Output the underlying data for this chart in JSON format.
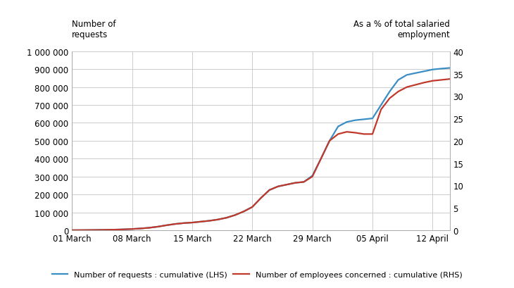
{
  "ylabel_left": "Number of\nrequests",
  "ylabel_right": "As a % of total salaried\nemployment",
  "x_labels": [
    "01 March",
    "08 March",
    "15 March",
    "22 March",
    "29 March",
    "05 April",
    "12 April"
  ],
  "x_positions": [
    0,
    7,
    14,
    21,
    28,
    35,
    42
  ],
  "lhs_data_x": [
    0,
    1,
    2,
    3,
    4,
    5,
    6,
    7,
    8,
    9,
    10,
    11,
    12,
    13,
    14,
    15,
    16,
    17,
    18,
    19,
    20,
    21,
    22,
    23,
    24,
    25,
    26,
    27,
    28,
    29,
    30,
    31,
    32,
    33,
    34,
    35,
    36,
    37,
    38,
    39,
    40,
    41,
    42,
    43,
    44
  ],
  "lhs_data_y": [
    500,
    800,
    1200,
    1800,
    2500,
    3500,
    5000,
    7000,
    10000,
    14000,
    20000,
    28000,
    35000,
    40000,
    43000,
    48000,
    53000,
    60000,
    70000,
    85000,
    105000,
    130000,
    180000,
    225000,
    245000,
    255000,
    265000,
    270000,
    305000,
    400000,
    500000,
    580000,
    605000,
    615000,
    620000,
    625000,
    700000,
    775000,
    840000,
    868000,
    878000,
    888000,
    898000,
    903000,
    907000
  ],
  "rhs_data_x": [
    0,
    1,
    2,
    3,
    4,
    5,
    6,
    7,
    8,
    9,
    10,
    11,
    12,
    13,
    14,
    15,
    16,
    17,
    18,
    19,
    20,
    21,
    22,
    23,
    24,
    25,
    26,
    27,
    28,
    29,
    30,
    31,
    32,
    33,
    34,
    35,
    36,
    37,
    38,
    39,
    40,
    41,
    42,
    43,
    44
  ],
  "rhs_data_y": [
    0.02,
    0.03,
    0.05,
    0.07,
    0.1,
    0.14,
    0.2,
    0.28,
    0.4,
    0.56,
    0.8,
    1.12,
    1.4,
    1.6,
    1.72,
    1.92,
    2.12,
    2.4,
    2.8,
    3.4,
    4.2,
    5.2,
    7.2,
    9.0,
    9.8,
    10.2,
    10.6,
    10.8,
    12.0,
    16.0,
    20.0,
    21.5,
    22.0,
    21.8,
    21.5,
    21.5,
    27.0,
    29.5,
    31.0,
    32.0,
    32.5,
    33.0,
    33.4,
    33.6,
    33.8
  ],
  "lhs_color": "#3a8ec5",
  "rhs_color": "#c0392b",
  "lhs_ylim": [
    0,
    1000000
  ],
  "rhs_ylim": [
    0,
    40
  ],
  "lhs_yticks": [
    0,
    100000,
    200000,
    300000,
    400000,
    500000,
    600000,
    700000,
    800000,
    900000,
    1000000
  ],
  "rhs_yticks": [
    0,
    5,
    10,
    15,
    20,
    25,
    30,
    35,
    40
  ],
  "legend_lhs": "Number of requests : cumulative (LHS)",
  "legend_rhs": "Number of employees concerned : cumulative (RHS)",
  "background_color": "#ffffff",
  "grid_color": "#cccccc"
}
